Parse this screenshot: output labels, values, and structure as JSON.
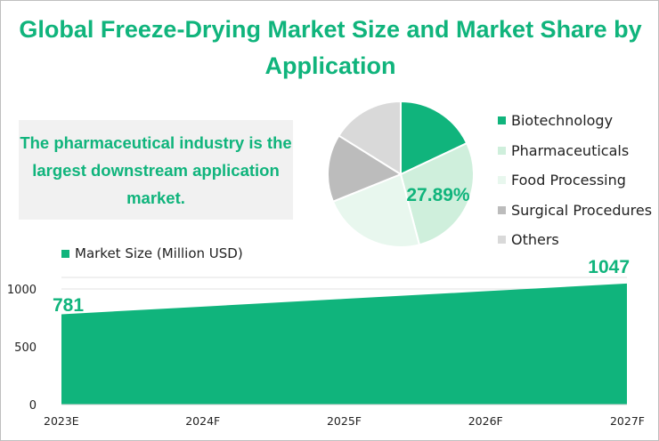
{
  "title": "Global Freeze-Drying Market Size and Market Share by Application",
  "callout": "The pharmaceutical industry is the largest downstream application market.",
  "chart_data": [
    {
      "type": "pie",
      "title": "Market Share by Application",
      "labels": [
        "Biotechnology",
        "Pharmaceuticals",
        "Food Processing",
        "Surgical Procedures",
        "Others"
      ],
      "values": [
        18,
        27.89,
        23,
        15,
        16.11
      ],
      "colors": [
        "#10b47c",
        "#cfefdc",
        "#e8f7ee",
        "#bcbcbc",
        "#d9d9d9"
      ],
      "data_label": "27.89%",
      "legend": "right"
    },
    {
      "type": "area",
      "series": [
        {
          "name": "Market Size (Million USD)",
          "values": [
            781,
            847.5,
            914,
            980.5,
            1047
          ],
          "color": "#10b47c"
        }
      ],
      "categories": [
        "2023E",
        "2024F",
        "2025F",
        "2026F",
        "2027F"
      ],
      "y_ticks": [
        "0",
        "500",
        "1000"
      ],
      "ylim": [
        0,
        1100
      ],
      "data_labels": [
        "781",
        "1047"
      ],
      "legend": "top-left"
    }
  ]
}
